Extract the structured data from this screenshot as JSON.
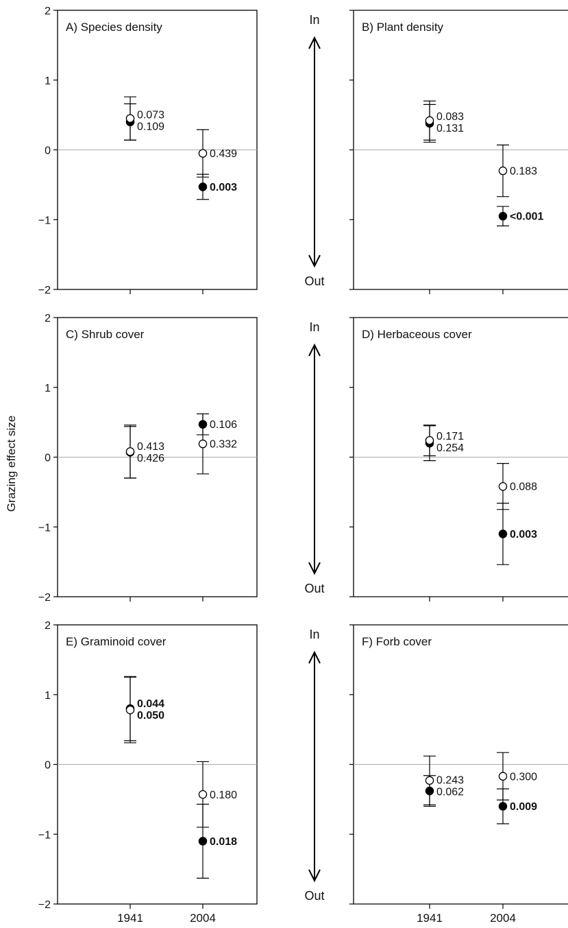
{
  "y_axis_label": "Grazing effect size",
  "arrow_labels": {
    "top": "In",
    "bottom": "Out"
  },
  "colors": {
    "marker_open_fill": "#ffffff",
    "marker_closed_fill": "#000000",
    "zero_line": "#aaaaaa",
    "axis": "#000000"
  },
  "chart_data": [
    {
      "type": "scatter",
      "title": "A) Species density",
      "categories": [
        "1941",
        "2004"
      ],
      "ylim": [
        -2,
        2
      ],
      "yticks": [
        "2",
        "1",
        "0",
        "−1",
        "−2"
      ],
      "grid": false,
      "series": [
        {
          "marker": "open",
          "points": [
            {
              "x": "1941",
              "y": 0.45,
              "err": 0.31,
              "p": "0.073",
              "bold": false
            },
            {
              "x": "2004",
              "y": -0.05,
              "err": 0.34,
              "p": "0.439",
              "bold": false
            }
          ]
        },
        {
          "marker": "closed",
          "points": [
            {
              "x": "1941",
              "y": 0.4,
              "err": 0.26,
              "p": "0.109",
              "bold": false
            },
            {
              "x": "2004",
              "y": -0.53,
              "err": 0.18,
              "p": "0.003",
              "bold": true
            }
          ]
        }
      ]
    },
    {
      "type": "scatter",
      "title": "B) Plant density",
      "categories": [
        "1941",
        "2004"
      ],
      "ylim": [
        -2,
        2
      ],
      "yticks": [],
      "grid": false,
      "series": [
        {
          "marker": "open",
          "points": [
            {
              "x": "1941",
              "y": 0.42,
              "err": 0.28,
              "p": "0.083",
              "bold": false
            },
            {
              "x": "2004",
              "y": -0.3,
              "err": 0.37,
              "p": "0.183",
              "bold": false
            }
          ]
        },
        {
          "marker": "closed",
          "points": [
            {
              "x": "1941",
              "y": 0.38,
              "err": 0.27,
              "p": "0.131",
              "bold": false
            },
            {
              "x": "2004",
              "y": -0.95,
              "err": 0.14,
              "p": "<0.001",
              "bold": true
            }
          ]
        }
      ]
    },
    {
      "type": "scatter",
      "title": "C) Shrub cover",
      "categories": [
        "1941",
        "2004"
      ],
      "ylim": [
        -2,
        2
      ],
      "yticks": [
        "2",
        "1",
        "0",
        "−1",
        "−2"
      ],
      "grid": false,
      "series": [
        {
          "marker": "open",
          "points": [
            {
              "x": "1941",
              "y": 0.08,
              "err": 0.38,
              "p": "0.413",
              "bold": false
            },
            {
              "x": "2004",
              "y": 0.19,
              "err": 0.43,
              "p": "0.332",
              "bold": false
            }
          ]
        },
        {
          "marker": "closed",
          "points": [
            {
              "x": "1941",
              "y": 0.07,
              "err": 0.37,
              "p": "0.426",
              "bold": false
            },
            {
              "x": "2004",
              "y": 0.47,
              "err": 0.15,
              "p": "0.106",
              "bold": false
            }
          ]
        }
      ]
    },
    {
      "type": "scatter",
      "title": "D) Herbaceous cover",
      "categories": [
        "1941",
        "2004"
      ],
      "ylim": [
        -2,
        2
      ],
      "yticks": [],
      "grid": false,
      "series": [
        {
          "marker": "open",
          "points": [
            {
              "x": "1941",
              "y": 0.24,
              "err": 0.22,
              "p": "0.171",
              "bold": false
            },
            {
              "x": "2004",
              "y": -0.42,
              "err": 0.33,
              "p": "0.088",
              "bold": false
            }
          ]
        },
        {
          "marker": "closed",
          "points": [
            {
              "x": "1941",
              "y": 0.2,
              "err": 0.25,
              "p": "0.254",
              "bold": false
            },
            {
              "x": "2004",
              "y": -1.1,
              "err": 0.44,
              "p": "0.003",
              "bold": true
            }
          ]
        }
      ]
    },
    {
      "type": "scatter",
      "title": "E) Graminoid cover",
      "categories": [
        "1941",
        "2004"
      ],
      "ylim": [
        -2,
        2
      ],
      "yticks": [
        "2",
        "1",
        "0",
        "−1",
        "−2"
      ],
      "grid": false,
      "series": [
        {
          "marker": "open",
          "points": [
            {
              "x": "1941",
              "y": 0.78,
              "err": 0.47,
              "p": "0.050",
              "bold": true
            },
            {
              "x": "2004",
              "y": -0.43,
              "err": 0.47,
              "p": "0.180",
              "bold": false
            }
          ]
        },
        {
          "marker": "closed",
          "points": [
            {
              "x": "1941",
              "y": 0.8,
              "err": 0.46,
              "p": "0.044",
              "bold": true
            },
            {
              "x": "2004",
              "y": -1.1,
              "err": 0.53,
              "p": "0.018",
              "bold": true
            }
          ]
        }
      ]
    },
    {
      "type": "scatter",
      "title": "F) Forb cover",
      "categories": [
        "1941",
        "2004"
      ],
      "ylim": [
        -2,
        2
      ],
      "yticks": [],
      "grid": false,
      "series": [
        {
          "marker": "open",
          "points": [
            {
              "x": "1941",
              "y": -0.23,
              "err": 0.35,
              "p": "0.243",
              "bold": false
            },
            {
              "x": "2004",
              "y": -0.17,
              "err": 0.34,
              "p": "0.300",
              "bold": false
            }
          ]
        },
        {
          "marker": "closed",
          "points": [
            {
              "x": "1941",
              "y": -0.38,
              "err": 0.22,
              "p": "0.062",
              "bold": false
            },
            {
              "x": "2004",
              "y": -0.6,
              "err": 0.25,
              "p": "0.009",
              "bold": true
            }
          ]
        }
      ]
    }
  ],
  "x_tick_labels": [
    "1941",
    "2004"
  ]
}
